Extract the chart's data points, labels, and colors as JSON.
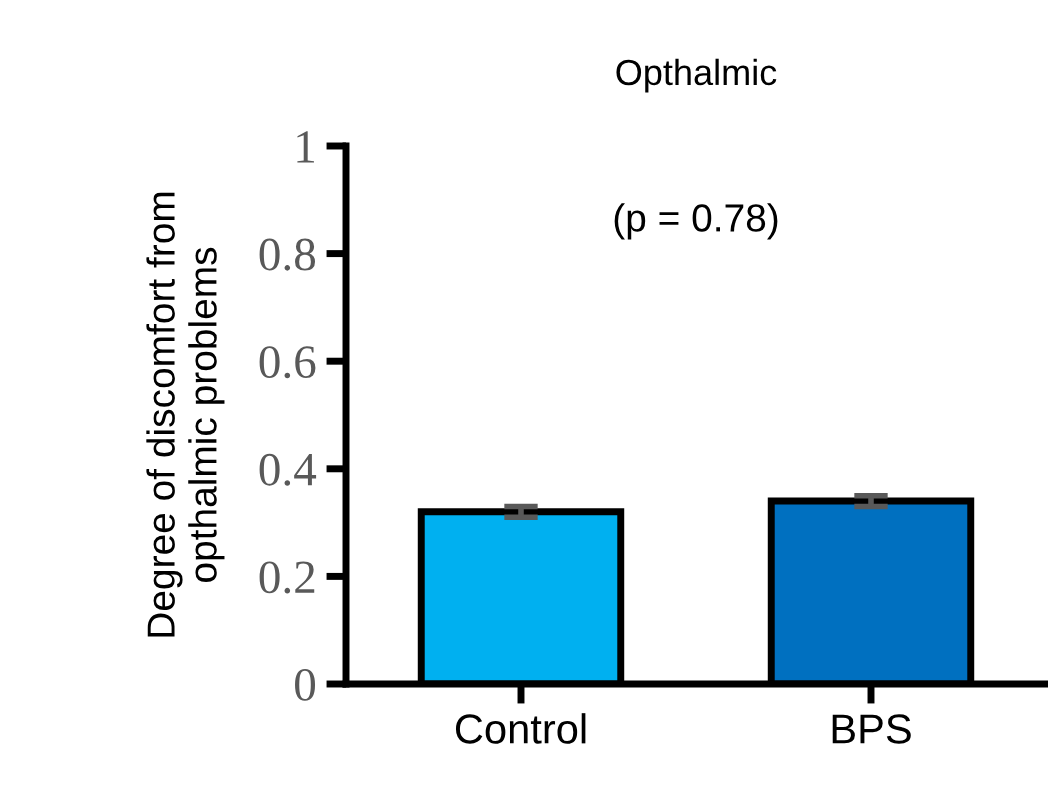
{
  "chart_data": {
    "type": "bar",
    "title": "Opthalmic",
    "ylabel": "Degree of discomfort from\nopthalmic problems",
    "categories": [
      "Control",
      "BPS"
    ],
    "values": [
      0.32,
      0.34
    ],
    "errors": [
      0.01,
      0.01
    ],
    "colors": [
      "#00b0f0",
      "#0070c0"
    ],
    "ylim": [
      0,
      1
    ],
    "yticks": [
      0,
      0.2,
      0.4,
      0.6,
      0.8,
      1
    ],
    "grid": false,
    "annotations": [
      "(p = 0.78)"
    ]
  }
}
